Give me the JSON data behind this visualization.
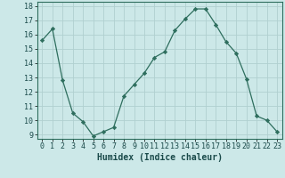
{
  "x": [
    0,
    1,
    2,
    3,
    4,
    5,
    6,
    7,
    8,
    9,
    10,
    11,
    12,
    13,
    14,
    15,
    16,
    17,
    18,
    19,
    20,
    21,
    22,
    23
  ],
  "y": [
    15.6,
    16.4,
    12.8,
    10.5,
    9.9,
    8.9,
    9.2,
    9.5,
    11.7,
    12.5,
    13.3,
    14.4,
    14.8,
    16.3,
    17.1,
    17.8,
    17.8,
    16.7,
    15.5,
    14.7,
    12.9,
    10.3,
    10.0,
    9.2
  ],
  "line_color": "#2e6e5e",
  "marker": "D",
  "marker_size": 2.2,
  "bg_color": "#cce8e8",
  "grid_color": "#b0d0d0",
  "xlabel": "Humidex (Indice chaleur)",
  "ylim": [
    8.7,
    18.3
  ],
  "xlim": [
    -0.5,
    23.5
  ],
  "yticks": [
    9,
    10,
    11,
    12,
    13,
    14,
    15,
    16,
    17,
    18
  ],
  "xticks": [
    0,
    1,
    2,
    3,
    4,
    5,
    6,
    7,
    8,
    9,
    10,
    11,
    12,
    13,
    14,
    15,
    16,
    17,
    18,
    19,
    20,
    21,
    22,
    23
  ],
  "tick_fontsize": 6,
  "xlabel_fontsize": 7,
  "spine_color": "#2e6e5e"
}
